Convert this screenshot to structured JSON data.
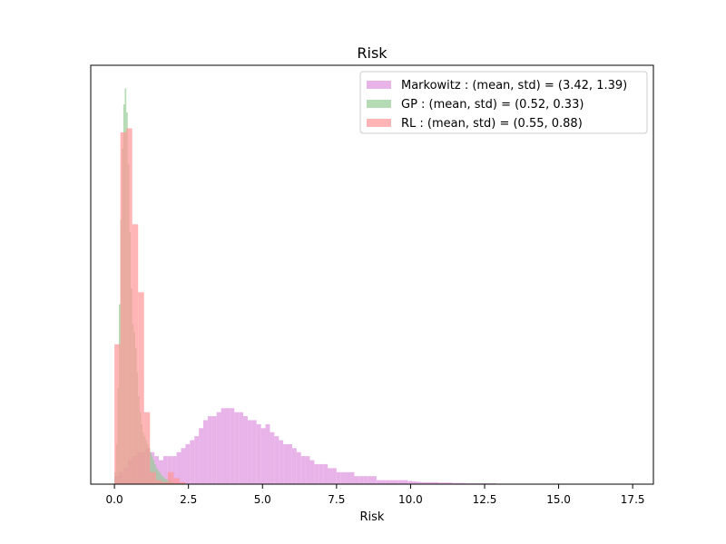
{
  "chart_data": {
    "type": "histogram",
    "title": "Risk",
    "xlabel": "Risk",
    "ylabel": "",
    "xlim": [
      -0.8,
      18.2
    ],
    "ylim": [
      0,
      1.0
    ],
    "x_ticks": [
      0,
      2.5,
      5,
      7.5,
      10,
      12.5,
      15,
      17.5
    ],
    "x_tick_labels": [
      "0.0",
      "2.5",
      "5.0",
      "7.5",
      "10.0",
      "12.5",
      "15.0",
      "17.5"
    ],
    "y_ticks_visible": false,
    "grid": false,
    "legend_position": "top-right",
    "colors": {
      "Markowitz": "#dda0dd",
      "GP": "#98cb98",
      "RL": "#ff9a9a"
    },
    "series": [
      {
        "name": "Markowitz : (mean, std) = (3.42, 1.39)",
        "key": "Markowitz",
        "color": "#e4a6e4",
        "opacity": 0.85,
        "bin_start": 0.0,
        "bin_width": 0.15,
        "heights": [
          0.02,
          0.03,
          0.04,
          0.06,
          0.07,
          0.08,
          0.08,
          0.09,
          0.08,
          0.07,
          0.06,
          0.07,
          0.07,
          0.07,
          0.08,
          0.09,
          0.1,
          0.11,
          0.12,
          0.14,
          0.16,
          0.17,
          0.17,
          0.18,
          0.19,
          0.19,
          0.19,
          0.18,
          0.18,
          0.17,
          0.16,
          0.16,
          0.15,
          0.14,
          0.15,
          0.13,
          0.12,
          0.11,
          0.1,
          0.1,
          0.09,
          0.08,
          0.07,
          0.07,
          0.06,
          0.05,
          0.05,
          0.05,
          0.04,
          0.04,
          0.03,
          0.03,
          0.03,
          0.03,
          0.02,
          0.02,
          0.02,
          0.02,
          0.02,
          0.01,
          0.01,
          0.01,
          0.01,
          0.01,
          0.01,
          0.01,
          0.008,
          0.007,
          0.006,
          0.005,
          0.005,
          0.005,
          0.005,
          0.004,
          0.004,
          0.004,
          0.003,
          0.003,
          0.003,
          0.002,
          0.002,
          0.002,
          0.002,
          0.002,
          0.002,
          0.002,
          0.001,
          0.001,
          0.001,
          0.001,
          0.001,
          0.001,
          0.001,
          0.001,
          0.001,
          0.001,
          0.001,
          0.001,
          0.001,
          0.001,
          0.001,
          0.001,
          0.001,
          0.001,
          0.001,
          0.001,
          0.001,
          0.001,
          0.001,
          0.001,
          0.001,
          0.001,
          0.001,
          0.001,
          0.001,
          0.001,
          0.001
        ]
      },
      {
        "name": "GP : (mean, std) = (0.52, 0.33)",
        "key": "GP",
        "color": "#96cc96",
        "opacity": 0.7,
        "bin_start": 0.0,
        "bin_width": 0.05,
        "heights": [
          0.03,
          0.1,
          0.24,
          0.45,
          0.66,
          0.84,
          0.95,
          0.99,
          0.93,
          0.8,
          0.63,
          0.49,
          0.4,
          0.38,
          0.34,
          0.28,
          0.22,
          0.18,
          0.15,
          0.13,
          0.12,
          0.11,
          0.1,
          0.09,
          0.08,
          0.07,
          0.06,
          0.05,
          0.04,
          0.035,
          0.03,
          0.025,
          0.02,
          0.017,
          0.014,
          0.012,
          0.01,
          0.008,
          0.007,
          0.006
        ]
      },
      {
        "name": "RL : (mean, std) = (0.55, 0.88)",
        "key": "RL",
        "color": "#ff9696",
        "opacity": 0.7,
        "bin_start": 0.0,
        "bin_width": 0.2,
        "heights": [
          0.35,
          0.88,
          0.89,
          0.65,
          0.48,
          0.18,
          0.03,
          0.01,
          0.005,
          0.03,
          0.015,
          0.005
        ]
      }
    ]
  }
}
